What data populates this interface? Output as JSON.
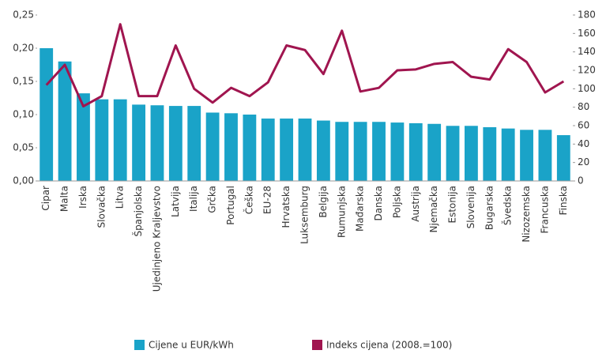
{
  "chart_data": {
    "type": "bar_line",
    "categories": [
      "Cipar",
      "Malta",
      "Irska",
      "Slovačka",
      "Litva",
      "Španjolska",
      "Ujedinjeno Kraljevstvo",
      "Latvija",
      "Italija",
      "Grčka",
      "Portugal",
      "Češka",
      "EU-28",
      "Hrvatska",
      "Luksemburg",
      "Belgija",
      "Rumunjska",
      "Mađarska",
      "Danska",
      "Poljska",
      "Austrija",
      "Njemačka",
      "Estonija",
      "Slovenija",
      "Bugarska",
      "Švedska",
      "Nizozemska",
      "Francuska",
      "Finska"
    ],
    "series": [
      {
        "name": "Cijene u EUR/kWh",
        "color": "#1aa3c8",
        "type": "bar",
        "values": [
          0.2,
          0.18,
          0.132,
          0.123,
          0.123,
          0.115,
          0.114,
          0.113,
          0.113,
          0.103,
          0.102,
          0.1,
          0.094,
          0.094,
          0.094,
          0.091,
          0.089,
          0.089,
          0.089,
          0.088,
          0.087,
          0.086,
          0.083,
          0.083,
          0.081,
          0.079,
          0.077,
          0.077,
          0.069
        ]
      },
      {
        "name": "Indeks cijena (2008.=100)",
        "color": "#a0154f",
        "type": "line",
        "axis": "y2",
        "values": [
          104,
          126,
          81,
          92,
          170,
          92,
          92,
          147,
          100,
          85,
          101,
          92,
          107,
          147,
          142,
          116,
          163,
          97,
          101,
          120,
          121,
          127,
          129,
          113,
          110,
          143,
          129,
          96,
          108
        ]
      }
    ],
    "ylim": [
      0,
      0.25
    ],
    "yticks": [
      {
        "value": 0,
        "label": "0,00"
      },
      {
        "value": 0.05,
        "label": "0,05"
      },
      {
        "value": 0.1,
        "label": "0,10"
      },
      {
        "value": 0.15,
        "label": "0,15"
      },
      {
        "value": 0.2,
        "label": "0,20"
      },
      {
        "value": 0.25,
        "label": "0,25"
      }
    ],
    "y2lim": [
      0,
      180
    ],
    "y2ticks": [
      0,
      20,
      40,
      60,
      80,
      100,
      120,
      140,
      160,
      180
    ],
    "legend": "bottom"
  }
}
